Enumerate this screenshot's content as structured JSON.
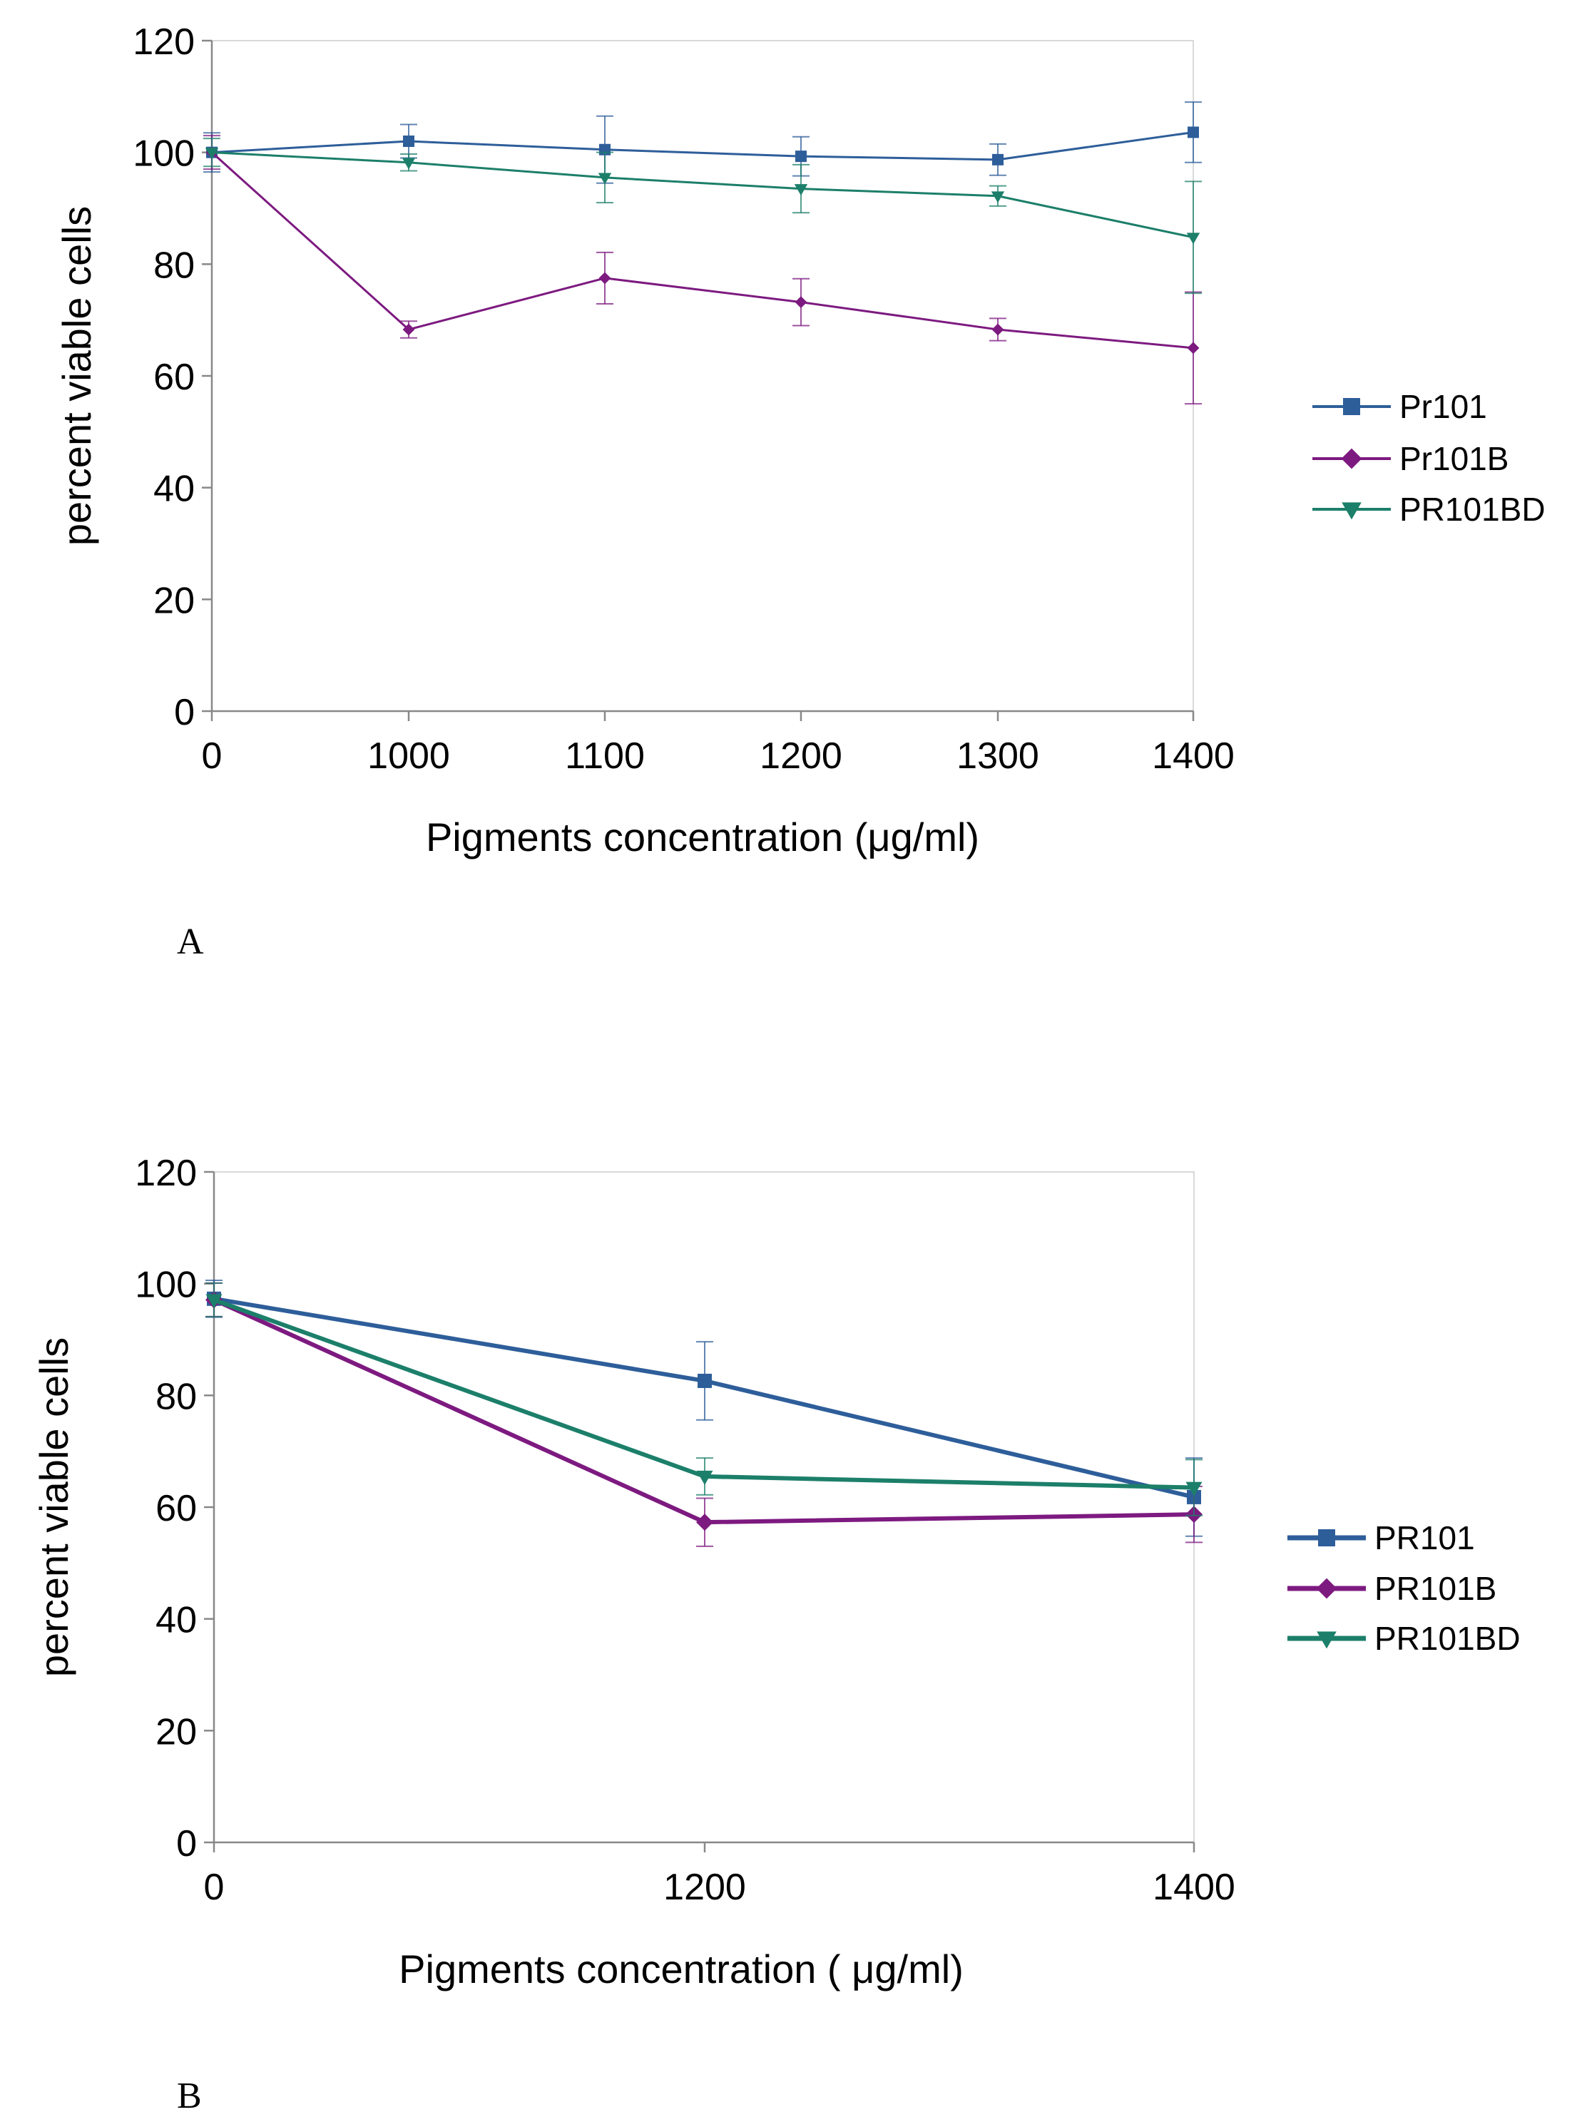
{
  "chart_data": [
    {
      "type": "line",
      "panel_label": "A",
      "xlabel": "Pigments concentration (μg/ml)",
      "ylabel": "percent viable cells",
      "categories": [
        "0",
        "1000",
        "1100",
        "1200",
        "1300",
        "1400"
      ],
      "ylim": [
        0,
        120
      ],
      "yticks": [
        "0",
        "20",
        "40",
        "60",
        "80",
        "100",
        "120"
      ],
      "grid": false,
      "legend_position": "right",
      "error_bars": true,
      "series": [
        {
          "name": "Pr101",
          "marker": "square",
          "color": "#2E5E9A",
          "values": [
            100,
            102,
            100.5,
            99.3,
            98.7,
            103.6
          ],
          "errors": [
            3.5,
            3,
            6,
            3.5,
            2.8,
            5.4
          ]
        },
        {
          "name": "Pr101B",
          "marker": "diamond",
          "color": "#7D1A80",
          "values": [
            100,
            68.3,
            77.5,
            73.2,
            68.3,
            65
          ],
          "errors": [
            3,
            1.5,
            4.6,
            4.2,
            2,
            10
          ]
        },
        {
          "name": "PR101BD",
          "marker": "triangle-down",
          "color": "#1C7F6A",
          "values": [
            100,
            98.2,
            95.5,
            93.5,
            92.2,
            84.8
          ],
          "errors": [
            2.5,
            1.5,
            4.5,
            4.3,
            1.8,
            10
          ]
        }
      ]
    },
    {
      "type": "line",
      "panel_label": "B",
      "xlabel": "Pigments concentration ( μg/ml)",
      "ylabel": "percent viable cells",
      "categories": [
        "0",
        "1200",
        "1400"
      ],
      "ylim": [
        0,
        120
      ],
      "yticks": [
        "0",
        "20",
        "40",
        "60",
        "80",
        "100",
        "120"
      ],
      "grid": false,
      "legend_position": "right",
      "error_bars": true,
      "series": [
        {
          "name": "PR101",
          "marker": "square",
          "color": "#2E5E9A",
          "values": [
            97.3,
            82.6,
            61.8
          ],
          "errors": [
            3.3,
            7,
            7
          ]
        },
        {
          "name": "PR101B",
          "marker": "diamond",
          "color": "#7D1A80",
          "values": [
            97.1,
            57.3,
            58.7
          ],
          "errors": [
            3,
            4.3,
            5
          ]
        },
        {
          "name": "PR101BD",
          "marker": "triangle-down",
          "color": "#1C7F6A",
          "values": [
            97.1,
            65.5,
            63.5
          ],
          "errors": [
            3,
            3.3,
            5
          ]
        }
      ]
    }
  ]
}
